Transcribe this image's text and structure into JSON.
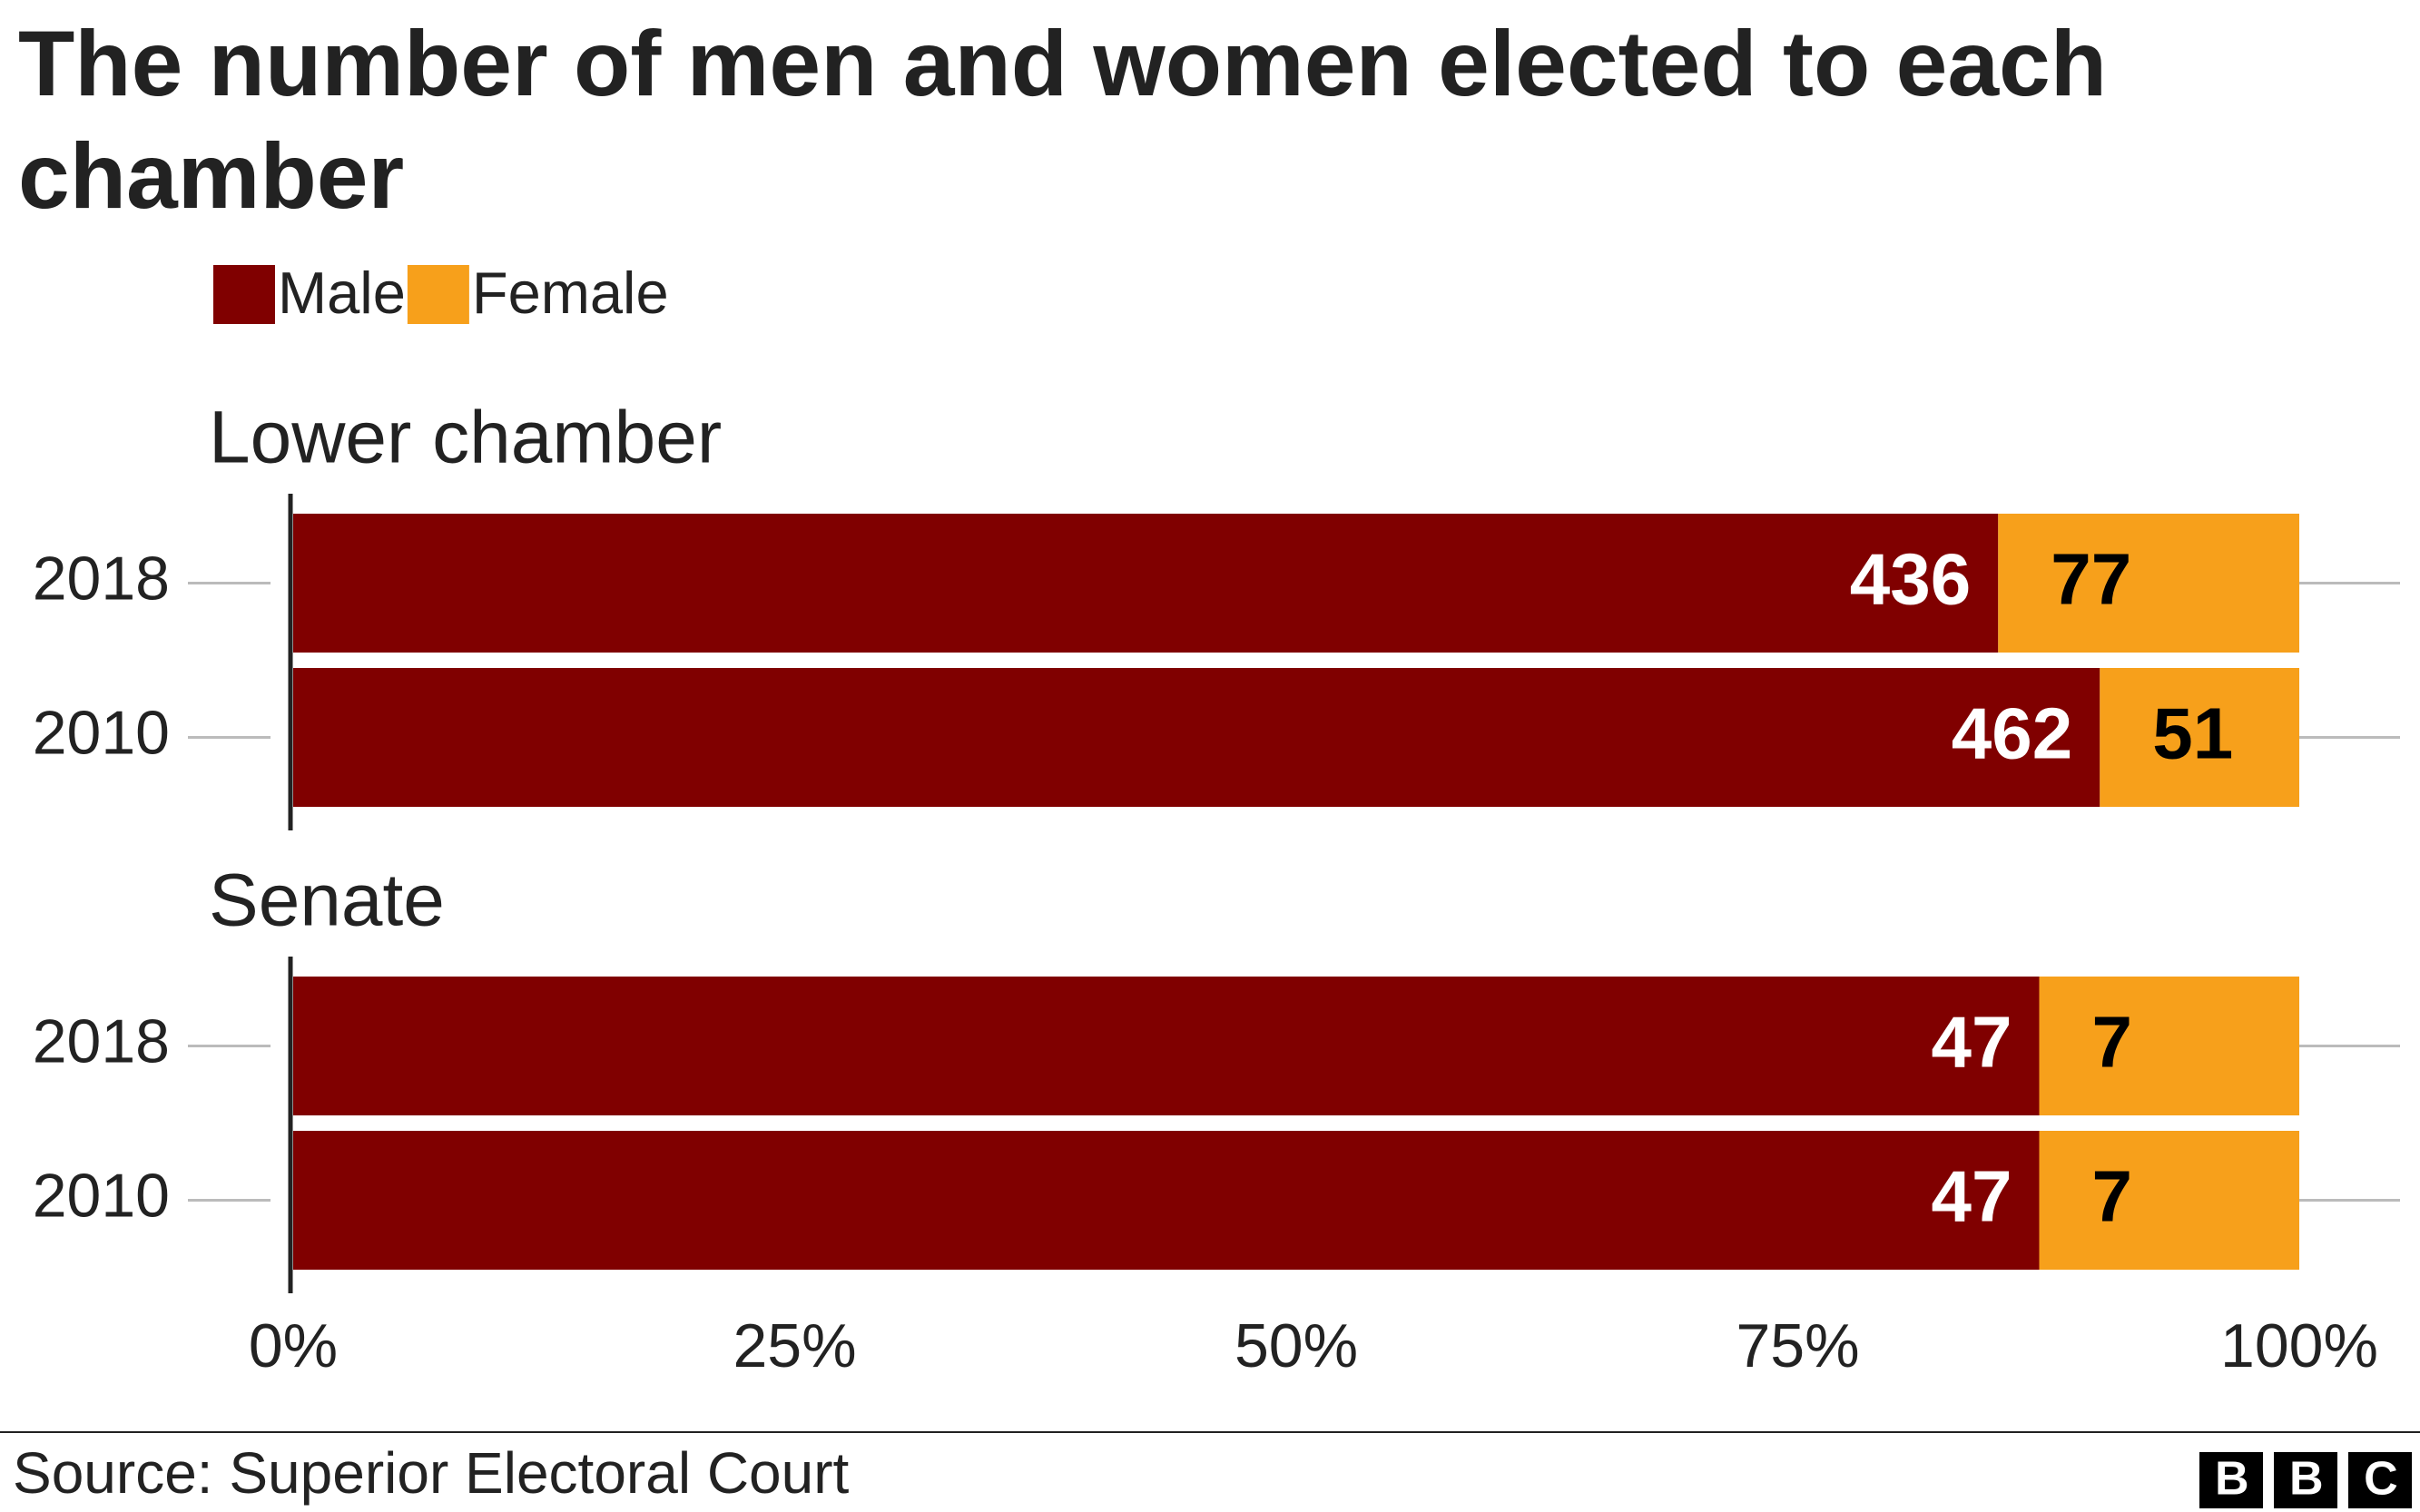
{
  "title": "The number of men and women elected to each chamber",
  "source": "Source: Superior Electoral Court",
  "logo": "BBC",
  "chart_data": [
    {
      "type": "bar",
      "orientation": "horizontal",
      "stacking": "percent",
      "title": "Lower chamber",
      "categories": [
        "2018",
        "2010"
      ],
      "series": [
        {
          "name": "Male",
          "color": "#800000",
          "values": [
            436,
            462
          ]
        },
        {
          "name": "Female",
          "color": "#f7a01b",
          "values": [
            77,
            51
          ]
        }
      ],
      "xlim": [
        0,
        100
      ]
    },
    {
      "type": "bar",
      "orientation": "horizontal",
      "stacking": "percent",
      "title": "Senate",
      "categories": [
        "2018",
        "2010"
      ],
      "series": [
        {
          "name": "Male",
          "color": "#800000",
          "values": [
            47,
            47
          ]
        },
        {
          "name": "Female",
          "color": "#f7a01b",
          "values": [
            7,
            7
          ]
        }
      ],
      "xlim": [
        0,
        100
      ],
      "xticks": [
        {
          "value": 0,
          "label": "0%"
        },
        {
          "value": 25,
          "label": "25%"
        },
        {
          "value": 50,
          "label": "50%"
        },
        {
          "value": 75,
          "label": "75%"
        },
        {
          "value": 100,
          "label": "100%"
        }
      ]
    }
  ]
}
